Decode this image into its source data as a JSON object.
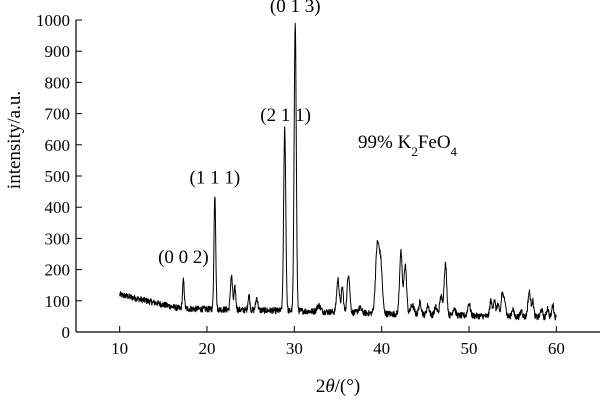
{
  "chart_data": {
    "type": "line",
    "xlabel_prefix": "2",
    "xlabel_theta": "θ",
    "xlabel_suffix": "/(°)",
    "ylabel": "intensity/a.u.",
    "xlim": [
      5,
      65
    ],
    "ylim": [
      0,
      1000
    ],
    "x_ticks": [
      10,
      20,
      30,
      40,
      50,
      60
    ],
    "y_ticks": [
      0,
      100,
      200,
      300,
      400,
      500,
      600,
      700,
      800,
      900,
      1000
    ],
    "sample_label": {
      "main": "99% K",
      "sub1": "2",
      "mid": "FeO",
      "sub2": "4"
    },
    "peak_labels": [
      {
        "text": "(0 0 2)",
        "x": 17.3,
        "y": 195
      },
      {
        "text": "(1 1 1)",
        "x": 20.9,
        "y": 450
      },
      {
        "text": "(2 1 1)",
        "x": 29.0,
        "y": 650
      },
      {
        "text": "(0 1 3)",
        "x": 30.1,
        "y": 1000
      }
    ],
    "series": [
      {
        "color": "#000000",
        "peaks": [
          [
            17.3,
            90,
            0.1
          ],
          [
            20.9,
            370,
            0.1
          ],
          [
            22.8,
            110,
            0.12
          ],
          [
            23.2,
            70,
            0.1
          ],
          [
            24.8,
            50,
            0.1
          ],
          [
            25.7,
            40,
            0.12
          ],
          [
            28.9,
            585,
            0.12
          ],
          [
            30.1,
            930,
            0.12
          ],
          [
            32.8,
            20,
            0.2
          ],
          [
            35.0,
            105,
            0.15
          ],
          [
            35.5,
            80,
            0.12
          ],
          [
            36.2,
            125,
            0.15
          ],
          [
            37.5,
            15,
            0.2
          ],
          [
            39.5,
            215,
            0.2
          ],
          [
            39.9,
            150,
            0.18
          ],
          [
            42.2,
            200,
            0.15
          ],
          [
            42.7,
            160,
            0.15
          ],
          [
            43.5,
            30,
            0.2
          ],
          [
            44.4,
            40,
            0.15
          ],
          [
            45.3,
            30,
            0.15
          ],
          [
            46.2,
            25,
            0.15
          ],
          [
            46.8,
            60,
            0.15
          ],
          [
            47.3,
            165,
            0.15
          ],
          [
            48.3,
            25,
            0.15
          ],
          [
            50.0,
            40,
            0.15
          ],
          [
            52.5,
            50,
            0.12
          ],
          [
            52.9,
            55,
            0.12
          ],
          [
            53.3,
            40,
            0.12
          ],
          [
            53.8,
            75,
            0.12
          ],
          [
            54.1,
            55,
            0.12
          ],
          [
            55.0,
            25,
            0.12
          ],
          [
            56.0,
            20,
            0.12
          ],
          [
            56.9,
            80,
            0.15
          ],
          [
            57.3,
            50,
            0.12
          ],
          [
            58.3,
            25,
            0.12
          ],
          [
            59.0,
            30,
            0.12
          ],
          [
            59.6,
            40,
            0.12
          ]
        ]
      }
    ],
    "grid": false,
    "legend": "none"
  }
}
